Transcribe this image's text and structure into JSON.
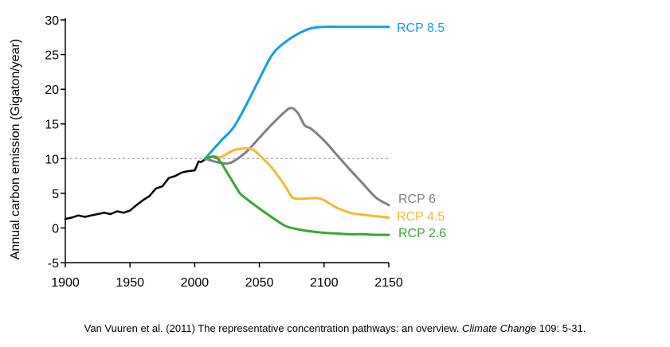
{
  "chart_data": {
    "type": "line",
    "title": "",
    "xlabel": "",
    "ylabel": "Annual carbon emission (Gigaton/year)",
    "xlim": [
      1900,
      2150
    ],
    "ylim": [
      -5,
      30
    ],
    "x_ticks": [
      1900,
      1950,
      2000,
      2050,
      2100,
      2150
    ],
    "x_tick_labels": [
      "1900",
      "1950",
      "2000",
      "2050",
      "2100",
      "2150"
    ],
    "y_ticks": [
      30,
      25,
      20,
      15,
      10,
      5,
      0,
      -5
    ],
    "y_tick_labels": [
      "30",
      "25",
      "20",
      "15",
      "10",
      "5",
      "0",
      "-5"
    ],
    "grid": false,
    "reference_line": {
      "y": 10,
      "style": "dashed",
      "color": "#888888"
    },
    "series": [
      {
        "color": "#000000",
        "x": [
          1900,
          1905,
          1910,
          1915,
          1920,
          1925,
          1930,
          1935,
          1940,
          1945,
          1950,
          1955,
          1960,
          1965,
          1970,
          1975,
          1980,
          1985,
          1990,
          1995,
          2000,
          2003,
          2005,
          2008
        ],
        "y": [
          1.3,
          1.5,
          1.8,
          1.6,
          1.8,
          2.0,
          2.2,
          2.0,
          2.4,
          2.2,
          2.5,
          3.3,
          4.0,
          4.6,
          5.7,
          6.0,
          7.2,
          7.5,
          8.0,
          8.2,
          8.3,
          9.6,
          9.5,
          9.9
        ]
      },
      {
        "name": "RCP 8.5",
        "color": "#169ddb",
        "x": [
          2008,
          2020,
          2030,
          2040,
          2050,
          2060,
          2070,
          2080,
          2090,
          2100,
          2110,
          2120,
          2130,
          2140,
          2150
        ],
        "y": [
          10.0,
          12.5,
          14.5,
          17.8,
          21.5,
          25.0,
          26.8,
          28.0,
          28.8,
          29.0,
          29.0,
          29.0,
          29.0,
          29.0,
          29.0
        ]
      },
      {
        "name": "RCP 6",
        "color": "#808080",
        "x": [
          2008,
          2015,
          2020,
          2025,
          2030,
          2040,
          2050,
          2060,
          2070,
          2075,
          2080,
          2085,
          2090,
          2100,
          2110,
          2120,
          2130,
          2140,
          2150
        ],
        "y": [
          10.0,
          9.6,
          9.4,
          9.3,
          9.6,
          11.0,
          13.0,
          15.0,
          16.8,
          17.3,
          16.5,
          14.8,
          14.3,
          12.6,
          10.5,
          8.4,
          6.4,
          4.4,
          3.3
        ]
      },
      {
        "name": "RCP 4.5",
        "color": "#f5b830",
        "x": [
          2008,
          2015,
          2020,
          2025,
          2030,
          2035,
          2040,
          2045,
          2050,
          2060,
          2070,
          2075,
          2080,
          2090,
          2095,
          2100,
          2110,
          2120,
          2130,
          2140,
          2150
        ],
        "y": [
          10.0,
          10.3,
          10.2,
          10.7,
          11.2,
          11.4,
          11.5,
          11.3,
          10.5,
          8.6,
          6.0,
          4.5,
          4.2,
          4.3,
          4.3,
          4.0,
          2.9,
          2.2,
          1.9,
          1.7,
          1.5
        ]
      },
      {
        "name": "RCP 2.6",
        "color": "#3aa535",
        "x": [
          2008,
          2015,
          2020,
          2025,
          2030,
          2035,
          2040,
          2050,
          2060,
          2070,
          2080,
          2090,
          2100,
          2110,
          2120,
          2130,
          2140,
          2150
        ],
        "y": [
          10.0,
          10.3,
          9.5,
          8.0,
          6.5,
          5.0,
          4.2,
          2.8,
          1.5,
          0.3,
          -0.2,
          -0.5,
          -0.7,
          -0.8,
          -0.9,
          -0.9,
          -1.0,
          -1.0
        ]
      }
    ]
  },
  "caption": {
    "prefix": "Van Vuuren et al. (2011) The representative concentration pathways: an overview. ",
    "journal": "Climate Change",
    "suffix": " 109: 5-31."
  }
}
